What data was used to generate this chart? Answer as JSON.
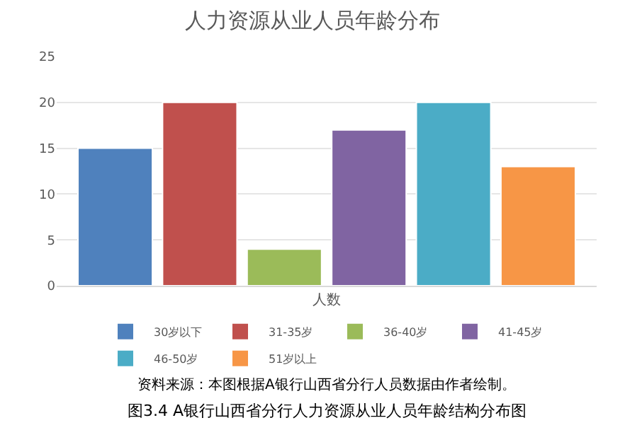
{
  "chart_data": {
    "type": "bar",
    "title": "人力资源从业人员年龄分布",
    "categories": [
      "人数"
    ],
    "series": [
      {
        "name": "30岁以下",
        "color": "#4f81bd",
        "values": [
          15
        ]
      },
      {
        "name": "31-35岁",
        "color": "#c0504d",
        "values": [
          20
        ]
      },
      {
        "name": "36-40岁",
        "color": "#9bbb59",
        "values": [
          4
        ]
      },
      {
        "name": "41-45岁",
        "color": "#8064a2",
        "values": [
          17
        ]
      },
      {
        "name": "46-50岁",
        "color": "#4bacc6",
        "values": [
          20
        ]
      },
      {
        "name": "51岁以上",
        "color": "#f79646",
        "values": [
          13
        ]
      }
    ],
    "ylim": [
      0,
      25
    ],
    "yticks": [
      0,
      5,
      10,
      15,
      20,
      25
    ],
    "grid": "y",
    "legend": "bottom",
    "annotations": [
      "资料来源：本图根据A银行山西省分行人员数据由作者绘制。",
      "图3.4 A银行山西省分行人力资源从业人员年龄结构分布图"
    ]
  }
}
